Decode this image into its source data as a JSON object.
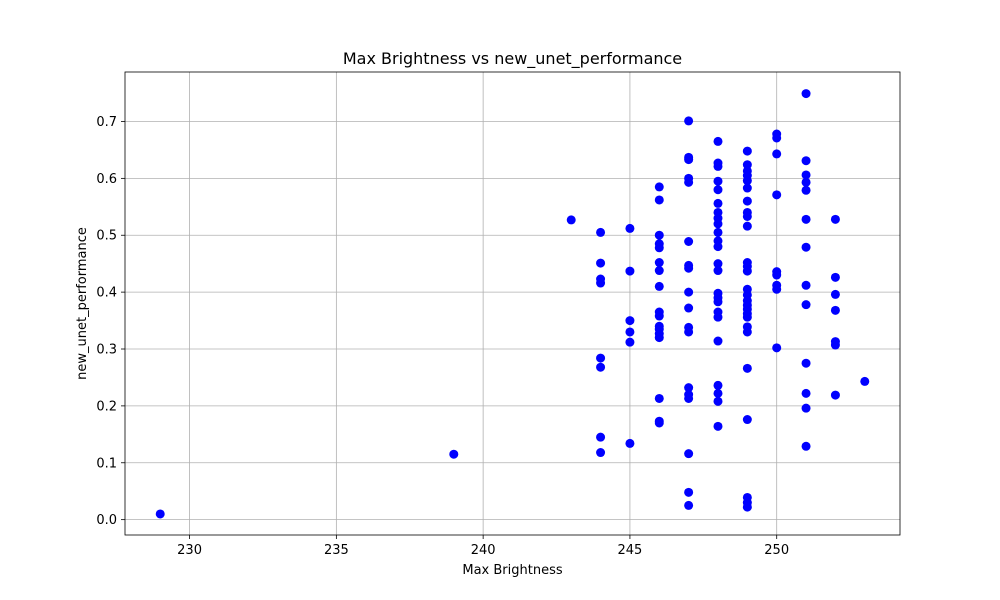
{
  "chart_data": {
    "type": "scatter",
    "title": "Max Brightness vs new_unet_performance",
    "xlabel": "Max Brightness",
    "ylabel": "new_unet_performance",
    "xlim": [
      227.8,
      254.2
    ],
    "ylim": [
      -0.027,
      0.787
    ],
    "xticks": [
      230,
      235,
      240,
      245,
      250
    ],
    "yticks": [
      0.0,
      0.1,
      0.2,
      0.3,
      0.4,
      0.5,
      0.6,
      0.7
    ],
    "grid": true,
    "marker_color": "#0000ff",
    "points": [
      [
        229,
        0.01
      ],
      [
        239,
        0.115
      ],
      [
        243,
        0.527
      ],
      [
        244,
        0.505
      ],
      [
        244,
        0.451
      ],
      [
        244,
        0.423
      ],
      [
        244,
        0.416
      ],
      [
        244,
        0.284
      ],
      [
        244,
        0.268
      ],
      [
        244,
        0.145
      ],
      [
        244,
        0.118
      ],
      [
        245,
        0.512
      ],
      [
        245,
        0.437
      ],
      [
        245,
        0.35
      ],
      [
        245,
        0.33
      ],
      [
        245,
        0.312
      ],
      [
        245,
        0.134
      ],
      [
        246,
        0.585
      ],
      [
        246,
        0.562
      ],
      [
        246,
        0.5
      ],
      [
        246,
        0.485
      ],
      [
        246,
        0.478
      ],
      [
        246,
        0.452
      ],
      [
        246,
        0.438
      ],
      [
        246,
        0.41
      ],
      [
        246,
        0.365
      ],
      [
        246,
        0.358
      ],
      [
        246,
        0.34
      ],
      [
        246,
        0.335
      ],
      [
        246,
        0.327
      ],
      [
        246,
        0.32
      ],
      [
        246,
        0.213
      ],
      [
        246,
        0.173
      ],
      [
        246,
        0.17
      ],
      [
        247,
        0.701
      ],
      [
        247,
        0.637
      ],
      [
        247,
        0.633
      ],
      [
        247,
        0.6
      ],
      [
        247,
        0.593
      ],
      [
        247,
        0.489
      ],
      [
        247,
        0.447
      ],
      [
        247,
        0.442
      ],
      [
        247,
        0.4
      ],
      [
        247,
        0.372
      ],
      [
        247,
        0.338
      ],
      [
        247,
        0.33
      ],
      [
        247,
        0.232
      ],
      [
        247,
        0.22
      ],
      [
        247,
        0.213
      ],
      [
        247,
        0.116
      ],
      [
        247,
        0.048
      ],
      [
        247,
        0.025
      ],
      [
        248,
        0.665
      ],
      [
        248,
        0.627
      ],
      [
        248,
        0.621
      ],
      [
        248,
        0.595
      ],
      [
        248,
        0.58
      ],
      [
        248,
        0.556
      ],
      [
        248,
        0.54
      ],
      [
        248,
        0.53
      ],
      [
        248,
        0.52
      ],
      [
        248,
        0.505
      ],
      [
        248,
        0.49
      ],
      [
        248,
        0.48
      ],
      [
        248,
        0.45
      ],
      [
        248,
        0.438
      ],
      [
        248,
        0.398
      ],
      [
        248,
        0.39
      ],
      [
        248,
        0.383
      ],
      [
        248,
        0.365
      ],
      [
        248,
        0.356
      ],
      [
        248,
        0.314
      ],
      [
        248,
        0.236
      ],
      [
        248,
        0.222
      ],
      [
        248,
        0.208
      ],
      [
        248,
        0.164
      ],
      [
        249,
        0.648
      ],
      [
        249,
        0.624
      ],
      [
        249,
        0.613
      ],
      [
        249,
        0.605
      ],
      [
        249,
        0.596
      ],
      [
        249,
        0.583
      ],
      [
        249,
        0.56
      ],
      [
        249,
        0.54
      ],
      [
        249,
        0.533
      ],
      [
        249,
        0.516
      ],
      [
        249,
        0.452
      ],
      [
        249,
        0.445
      ],
      [
        249,
        0.437
      ],
      [
        249,
        0.405
      ],
      [
        249,
        0.395
      ],
      [
        249,
        0.385
      ],
      [
        249,
        0.377
      ],
      [
        249,
        0.37
      ],
      [
        249,
        0.362
      ],
      [
        249,
        0.356
      ],
      [
        249,
        0.339
      ],
      [
        249,
        0.33
      ],
      [
        249,
        0.266
      ],
      [
        249,
        0.176
      ],
      [
        249,
        0.039
      ],
      [
        249,
        0.03
      ],
      [
        249,
        0.022
      ],
      [
        250,
        0.678
      ],
      [
        250,
        0.671
      ],
      [
        250,
        0.643
      ],
      [
        250,
        0.571
      ],
      [
        250,
        0.436
      ],
      [
        250,
        0.43
      ],
      [
        250,
        0.412
      ],
      [
        250,
        0.405
      ],
      [
        250,
        0.302
      ],
      [
        251,
        0.749
      ],
      [
        251,
        0.631
      ],
      [
        251,
        0.606
      ],
      [
        251,
        0.593
      ],
      [
        251,
        0.579
      ],
      [
        251,
        0.528
      ],
      [
        251,
        0.479
      ],
      [
        251,
        0.412
      ],
      [
        251,
        0.378
      ],
      [
        251,
        0.275
      ],
      [
        251,
        0.222
      ],
      [
        251,
        0.196
      ],
      [
        251,
        0.129
      ],
      [
        252,
        0.528
      ],
      [
        252,
        0.426
      ],
      [
        252,
        0.396
      ],
      [
        252,
        0.368
      ],
      [
        252,
        0.313
      ],
      [
        252,
        0.307
      ],
      [
        252,
        0.219
      ],
      [
        253,
        0.243
      ]
    ]
  }
}
